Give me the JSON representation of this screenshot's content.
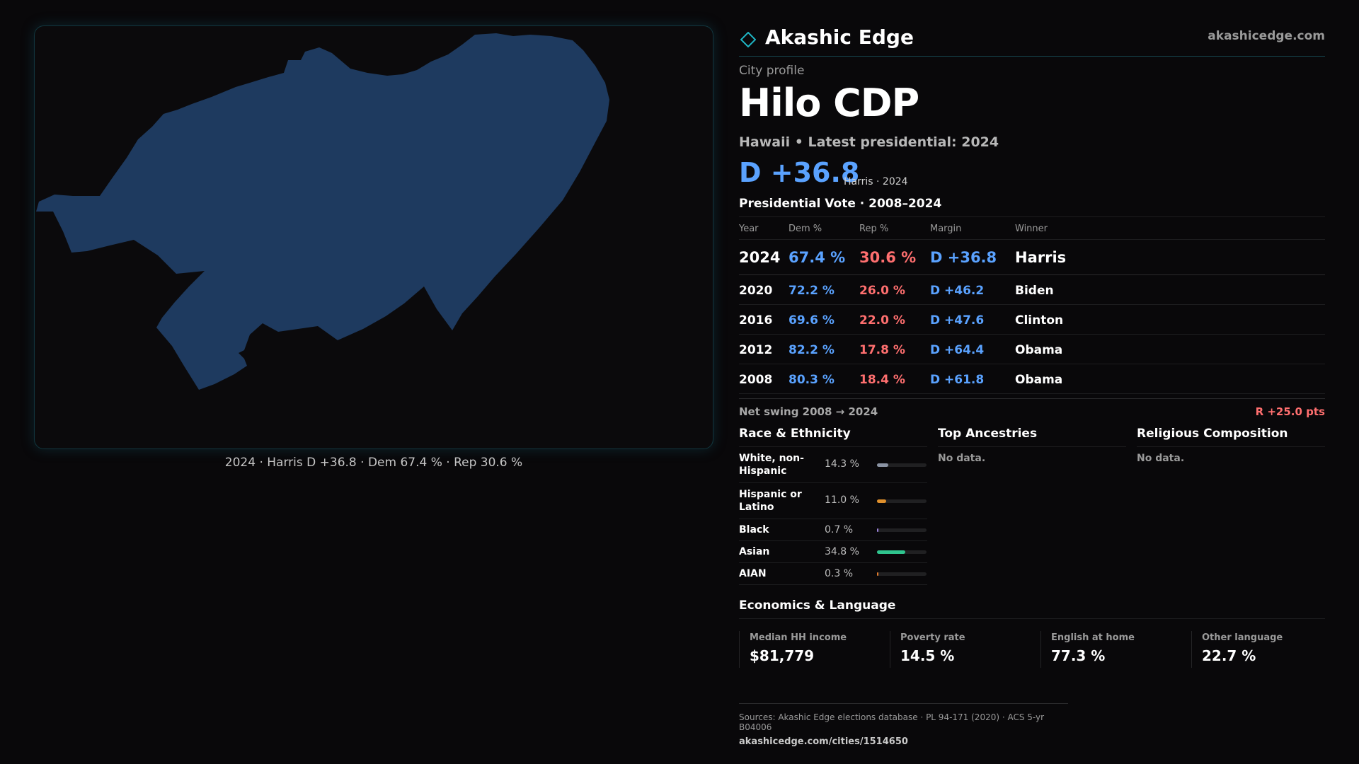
{
  "brand": {
    "name": "Akashic Edge",
    "url": "akashicedge.com",
    "accent": "#1fb5c4"
  },
  "profile": {
    "kicker": "City profile",
    "name": "Hilo CDP",
    "subline": "Hawaii • Latest presidential: 2024",
    "margin": "D +36.8",
    "margin_note": "Harris · 2024"
  },
  "map": {
    "caption": "2024 · Harris D +36.8 · Dem 67.4 % · Rep 30.6 %",
    "fill_color": "#1e3a5f"
  },
  "presidential": {
    "title": "Presidential Vote · 2008–2024",
    "headers": {
      "year": "Year",
      "dem": "Dem %",
      "rep": "Rep %",
      "margin": "Margin",
      "winner": "Winner"
    },
    "rows": [
      {
        "year": "2024",
        "dem": "67.4 %",
        "rep": "30.6 %",
        "margin": "D +36.8",
        "winner": "Harris"
      },
      {
        "year": "2020",
        "dem": "72.2 %",
        "rep": "26.0 %",
        "margin": "D +46.2",
        "winner": "Biden"
      },
      {
        "year": "2016",
        "dem": "69.6 %",
        "rep": "22.0 %",
        "margin": "D +47.6",
        "winner": "Clinton"
      },
      {
        "year": "2012",
        "dem": "82.2 %",
        "rep": "17.8 %",
        "margin": "D +64.4",
        "winner": "Obama"
      },
      {
        "year": "2008",
        "dem": "80.3 %",
        "rep": "18.4 %",
        "margin": "D +61.8",
        "winner": "Obama"
      }
    ],
    "swing_label": "Net swing 2008 → 2024",
    "swing_value": "R +25.0 pts"
  },
  "race": {
    "title": "Race & Ethnicity",
    "rows": [
      {
        "label": "White, non-Hispanic",
        "pct": "14.3 %",
        "fraction": 0.143,
        "color": "#8a93a3",
        "lines": 2
      },
      {
        "label": "Hispanic or Latino",
        "pct": "11.0 %",
        "fraction": 0.11,
        "color": "#e0902c",
        "lines": 2
      },
      {
        "label": "Black",
        "pct": "0.7 %",
        "fraction": 0.007,
        "color": "#9a80d8",
        "lines": 1
      },
      {
        "label": "Asian",
        "pct": "34.8 %",
        "fraction": 0.348,
        "color": "#2fc48e",
        "lines": 1
      },
      {
        "label": "AIAN",
        "pct": "0.3 %",
        "fraction": 0.003,
        "color": "#e07a2c",
        "lines": 1
      }
    ]
  },
  "ancestries": {
    "title": "Top Ancestries",
    "empty": "No data."
  },
  "religion": {
    "title": "Religious Composition",
    "empty": "No data."
  },
  "economics": {
    "title": "Economics & Language",
    "cells": [
      {
        "label": "Median HH income",
        "value": "$81,779"
      },
      {
        "label": "Poverty rate",
        "value": "14.5 %"
      },
      {
        "label": "English at home",
        "value": "77.3 %"
      },
      {
        "label": "Other language",
        "value": "22.7 %"
      }
    ]
  },
  "sources": {
    "line": "Sources: Akashic Edge elections database · PL 94-171 (2020) · ACS 5-yr B04006",
    "url": "akashicedge.com/cities/1514650"
  }
}
